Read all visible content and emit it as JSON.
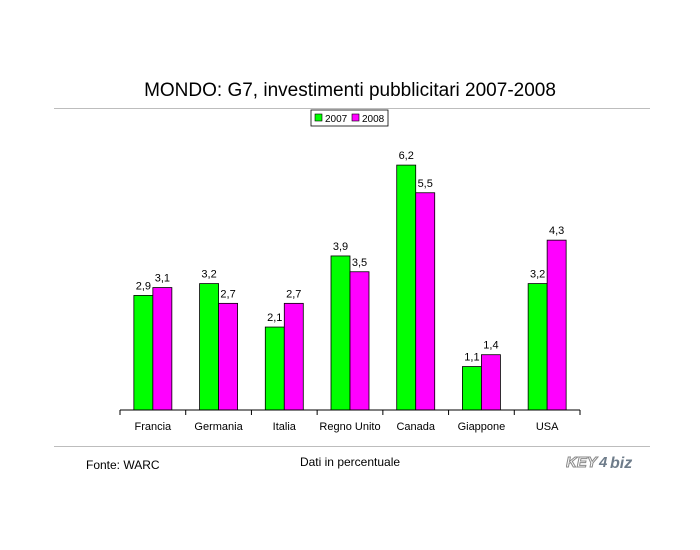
{
  "title": "MONDO: G7, investimenti pubblicitari 2007-2008",
  "source": "Fonte: WARC",
  "units_note": "Dati in percentuale",
  "logo_text": "KEY4biz",
  "colors": {
    "2007": "#00ff00",
    "2008": "#ff00ff"
  },
  "chart_data": {
    "type": "bar",
    "title": "MONDO: G7, investimenti pubblicitari 2007-2008",
    "xlabel": "",
    "ylabel": "",
    "ylim": [
      0,
      7
    ],
    "grid": false,
    "legend": "top-center",
    "categories": [
      "Francia",
      "Germania",
      "Italia",
      "Regno Unito",
      "Canada",
      "Giappone",
      "USA"
    ],
    "series": [
      {
        "name": "2007",
        "values": [
          2.9,
          3.2,
          2.1,
          3.9,
          6.2,
          1.1,
          3.2
        ],
        "labels": [
          "2,9",
          "3,2",
          "2,1",
          "3,9",
          "6,2",
          "1,1",
          "3,2"
        ]
      },
      {
        "name": "2008",
        "values": [
          3.1,
          2.7,
          2.7,
          3.5,
          5.5,
          1.4,
          4.3
        ],
        "labels": [
          "3,1",
          "2,7",
          "2,7",
          "3,5",
          "5,5",
          "1,4",
          "4,3"
        ]
      }
    ]
  }
}
